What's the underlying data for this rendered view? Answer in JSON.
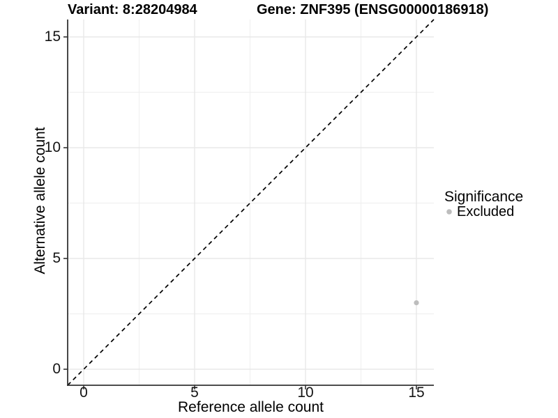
{
  "titles": {
    "variant": "Variant: 8:28204984",
    "gene": "Gene: ZNF395 (ENSG00000186918)"
  },
  "axes": {
    "x": {
      "label": "Reference allele count",
      "tick_labels": [
        "0",
        "5",
        "10",
        "15"
      ]
    },
    "y": {
      "label": "Alternative allele count",
      "tick_labels": [
        "0",
        "5",
        "10",
        "15"
      ]
    }
  },
  "legend": {
    "title": "Significance",
    "entries": [
      {
        "label": "Excluded",
        "color": "#bdbdbd"
      }
    ]
  },
  "colors": {
    "point": "#bdbdbd",
    "grid_major": "#e8e8e8",
    "grid_minor": "#f0f0f0",
    "axis_line": "#333333",
    "reference_line": "#000000",
    "text": "#000000"
  },
  "chart_data": {
    "type": "scatter",
    "title_left": "Variant: 8:28204984",
    "title_right": "Gene: ZNF395 (ENSG00000186918)",
    "xlabel": "Reference allele count",
    "ylabel": "Alternative allele count",
    "xlim": [
      -0.75,
      15.75
    ],
    "ylim": [
      -0.75,
      15.75
    ],
    "x_ticks": [
      0,
      5,
      10,
      15
    ],
    "y_ticks": [
      0,
      5,
      10,
      15
    ],
    "minor_gridlines": [
      2.5,
      7.5,
      12.5
    ],
    "grid": "on",
    "series": [
      {
        "name": "Excluded",
        "color": "#bdbdbd",
        "points": [
          {
            "x": 15,
            "y": 3
          }
        ]
      }
    ],
    "reference_line": {
      "kind": "identity y=x",
      "style": "dashed",
      "color": "#000000"
    },
    "legend_position": "right"
  }
}
